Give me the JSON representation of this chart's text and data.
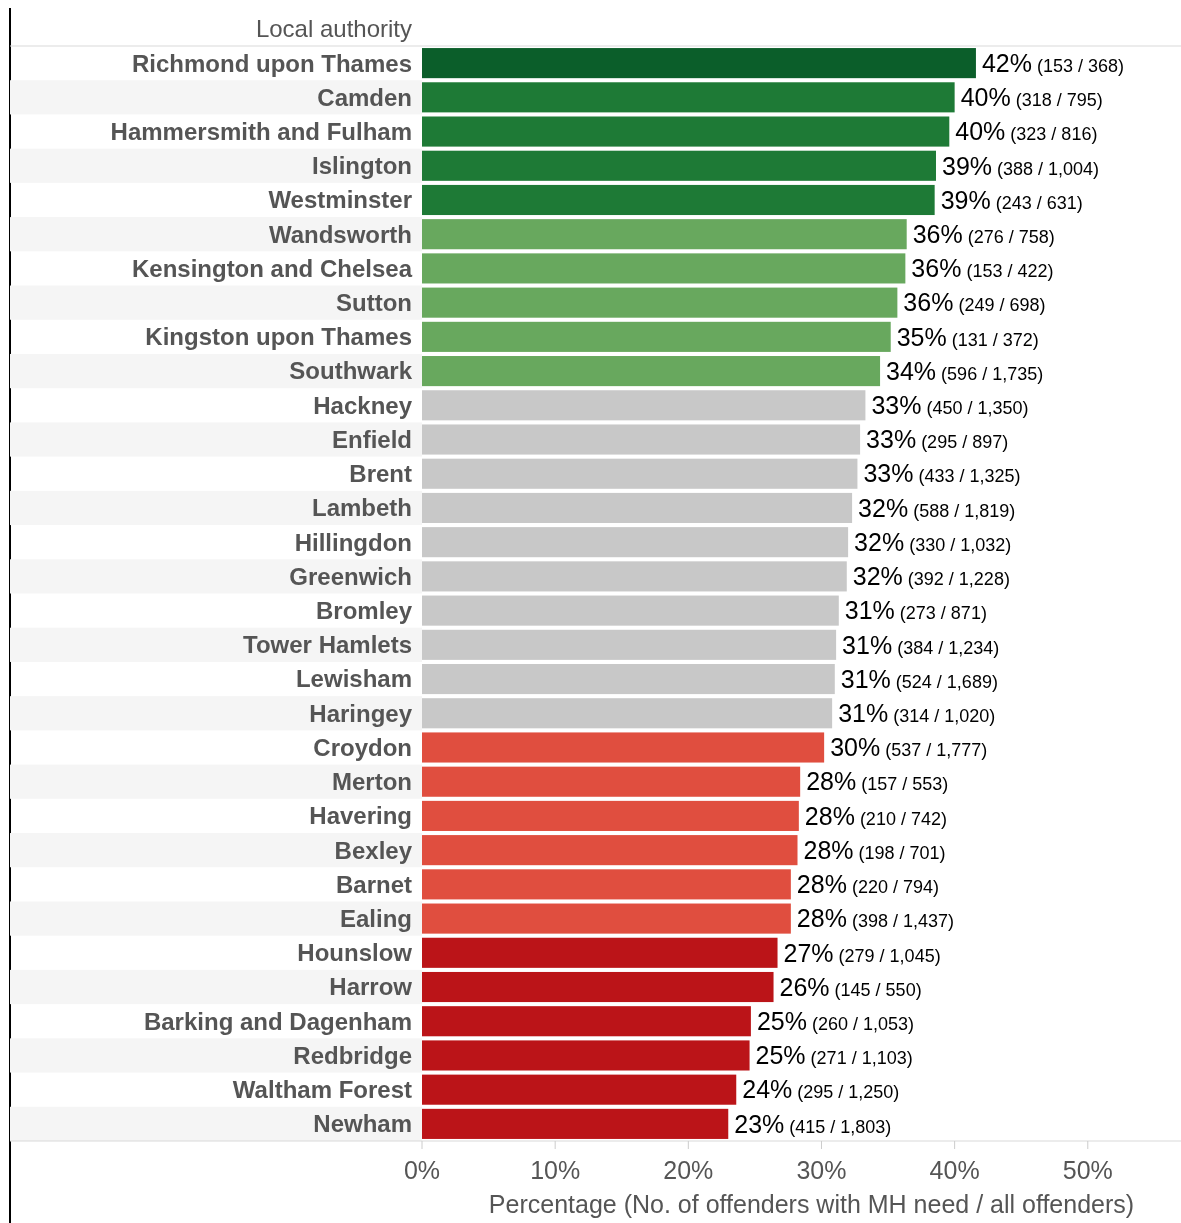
{
  "chart_data": {
    "type": "bar",
    "orientation": "horizontal",
    "ylabel": "Local authority",
    "xlabel": "Percentage (No. of offenders with MH need / all offenders)",
    "categories": [
      "Richmond upon Thames",
      "Camden",
      "Hammersmith and Fulham",
      "Islington",
      "Westminster",
      "Wandsworth",
      "Kensington and Chelsea",
      "Sutton",
      "Kingston upon Thames",
      "Southwark",
      "Hackney",
      "Enfield",
      "Brent",
      "Lambeth",
      "Hillingdon",
      "Greenwich",
      "Bromley",
      "Tower Hamlets",
      "Lewisham",
      "Haringey",
      "Croydon",
      "Merton",
      "Havering",
      "Bexley",
      "Barnet",
      "Ealing",
      "Hounslow",
      "Harrow",
      "Barking and Dagenham",
      "Redbridge",
      "Waltham Forest",
      "Newham"
    ],
    "values": [
      41.6,
      40.0,
      39.6,
      38.6,
      38.5,
      36.4,
      36.3,
      35.7,
      35.2,
      34.4,
      33.3,
      32.9,
      32.7,
      32.3,
      32.0,
      31.9,
      31.3,
      31.1,
      31.0,
      30.8,
      30.2,
      28.4,
      28.3,
      28.2,
      27.7,
      27.7,
      26.7,
      26.4,
      24.7,
      24.6,
      23.6,
      23.0
    ],
    "colors": [
      "#0b5e2a",
      "#1e7a36",
      "#1e7a36",
      "#1e7a36",
      "#1e7a36",
      "#68a85e",
      "#68a85e",
      "#68a85e",
      "#68a85e",
      "#68a85e",
      "#c8c8c8",
      "#c8c8c8",
      "#c8c8c8",
      "#c8c8c8",
      "#c8c8c8",
      "#c8c8c8",
      "#c8c8c8",
      "#c8c8c8",
      "#c8c8c8",
      "#c8c8c8",
      "#e04e3f",
      "#e04e3f",
      "#e04e3f",
      "#e04e3f",
      "#e04e3f",
      "#e04e3f",
      "#bb1418",
      "#bb1418",
      "#bb1418",
      "#bb1418",
      "#bb1418",
      "#bb1418"
    ],
    "value_labels": [
      "42% (153 / 368)",
      "40% (318 / 795)",
      "40% (323 / 816)",
      "39% (388 / 1,004)",
      "39% (243 / 631)",
      "36% (276 / 758)",
      "36% (153 / 422)",
      "36% (249 / 698)",
      "35% (131 / 372)",
      "34% (596 / 1,735)",
      "33% (450 / 1,350)",
      "33% (295 / 897)",
      "33% (433 / 1,325)",
      "32% (588 / 1,819)",
      "32% (330 / 1,032)",
      "32% (392 / 1,228)",
      "31% (273 / 871)",
      "31% (384 / 1,234)",
      "31% (524 / 1,689)",
      "31% (314 / 1,020)",
      "30% (537 / 1,777)",
      "28% (157 / 553)",
      "28% (210 / 742)",
      "28% (198 / 701)",
      "28% (220 / 794)",
      "28% (398 / 1,437)",
      "27% (279 / 1,045)",
      "26% (145 / 550)",
      "25% (260 / 1,053)",
      "25% (271 / 1,103)",
      "24% (295 / 1,250)",
      "23% (415 / 1,803)"
    ],
    "xlim": [
      0,
      57
    ],
    "xticks": [
      {
        "value": 0,
        "label": "0%"
      },
      {
        "value": 10,
        "label": "10%"
      },
      {
        "value": 20,
        "label": "20%"
      },
      {
        "value": 30,
        "label": "30%"
      },
      {
        "value": 40,
        "label": "40%"
      },
      {
        "value": 50,
        "label": "50%"
      }
    ],
    "grid": false
  }
}
